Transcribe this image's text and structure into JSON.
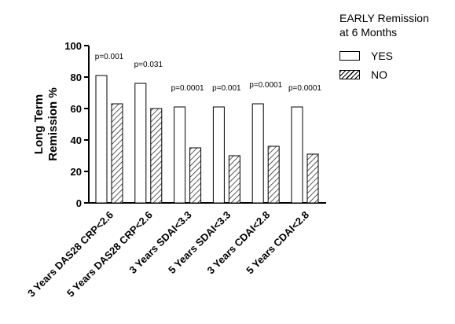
{
  "chart_data": {
    "type": "bar",
    "title": "",
    "xlabel": "",
    "ylabel_lines": [
      "Long Term",
      "Remission %"
    ],
    "ylim": [
      0,
      100
    ],
    "yticks": [
      0,
      20,
      40,
      60,
      80,
      100
    ],
    "categories": [
      "3 Years DAS28 CRP<2.6",
      "5 Years DAS28 CRP<2.6",
      "3 Years SDAI<3.3",
      "5 Years SDAI<3.3",
      "3 Years CDAI<2.8",
      "5 Years CDAI<2.8"
    ],
    "series": [
      {
        "name": "YES",
        "fill": "open",
        "values": [
          81,
          76,
          61,
          61,
          63,
          61
        ]
      },
      {
        "name": "NO",
        "fill": "hatched",
        "values": [
          63,
          60,
          35,
          30,
          36,
          31
        ]
      }
    ],
    "annotations": [
      "p=0.001",
      "p=0.031",
      "p=0.0001",
      "p=0.001",
      "p=0.0001",
      "p=0.0001"
    ],
    "legend": {
      "title_lines": [
        "EARLY Remission",
        "at 6 Months"
      ],
      "position": "top-right",
      "entries": [
        "YES",
        "NO"
      ]
    },
    "grid": false,
    "colors": {
      "stroke": "#000000",
      "background": "#ffffff"
    }
  }
}
